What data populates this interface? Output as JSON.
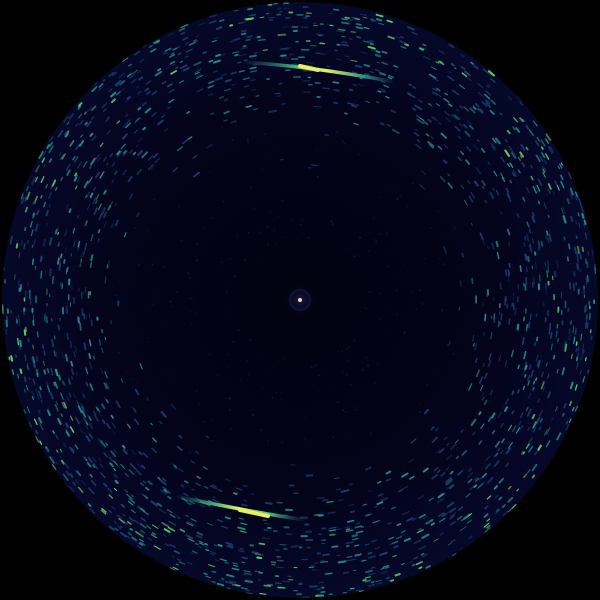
{
  "image": {
    "description_kind": "circular intensity pattern",
    "colors": {
      "background": "#000000",
      "disk": "#04041a",
      "speckle_low": "#1a3a6a",
      "speckle_mid": "#1f8f8a",
      "speckle_high": "#5ad06a",
      "streak_peak": "#e8f060",
      "center_spot": "#ffd0a0"
    }
  }
}
